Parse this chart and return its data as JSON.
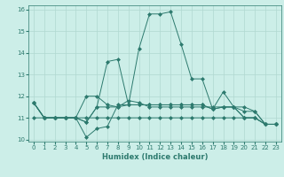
{
  "xlabel": "Humidex (Indice chaleur)",
  "bg_color": "#cceee8",
  "grid_color": "#b0d8d0",
  "line_color": "#2d7a6e",
  "xlim": [
    -0.5,
    23.5
  ],
  "ylim": [
    9.9,
    16.2
  ],
  "yticks": [
    10,
    11,
    12,
    13,
    14,
    15,
    16
  ],
  "xticks": [
    0,
    1,
    2,
    3,
    4,
    5,
    6,
    7,
    8,
    9,
    10,
    11,
    12,
    13,
    14,
    15,
    16,
    17,
    18,
    19,
    20,
    21,
    22,
    23
  ],
  "series": [
    [
      11.7,
      11.0,
      11.0,
      11.0,
      11.0,
      10.1,
      10.5,
      10.6,
      11.6,
      11.6,
      14.2,
      15.8,
      15.8,
      15.9,
      14.4,
      12.8,
      12.8,
      11.4,
      11.5,
      11.5,
      11.0,
      11.0,
      10.7,
      10.7
    ],
    [
      11.7,
      11.0,
      11.0,
      11.0,
      11.0,
      12.0,
      12.0,
      11.6,
      11.5,
      11.8,
      11.7,
      11.5,
      11.5,
      11.5,
      11.5,
      11.5,
      11.5,
      11.5,
      11.5,
      11.5,
      11.0,
      11.0,
      10.7,
      10.7
    ],
    [
      11.7,
      11.0,
      11.0,
      11.0,
      11.0,
      10.8,
      11.5,
      13.6,
      13.7,
      11.6,
      11.6,
      11.6,
      11.6,
      11.6,
      11.6,
      11.6,
      11.6,
      11.4,
      11.5,
      11.5,
      11.3,
      11.3,
      10.7,
      10.7
    ],
    [
      11.7,
      11.0,
      11.0,
      11.0,
      11.0,
      10.8,
      11.5,
      11.5,
      11.5,
      11.6,
      11.6,
      11.6,
      11.6,
      11.6,
      11.6,
      11.6,
      11.6,
      11.4,
      12.2,
      11.5,
      11.5,
      11.3,
      10.7,
      10.7
    ],
    [
      11.0,
      11.0,
      11.0,
      11.0,
      11.0,
      11.0,
      11.0,
      11.0,
      11.0,
      11.0,
      11.0,
      11.0,
      11.0,
      11.0,
      11.0,
      11.0,
      11.0,
      11.0,
      11.0,
      11.0,
      11.0,
      11.0,
      10.7,
      10.7
    ]
  ]
}
